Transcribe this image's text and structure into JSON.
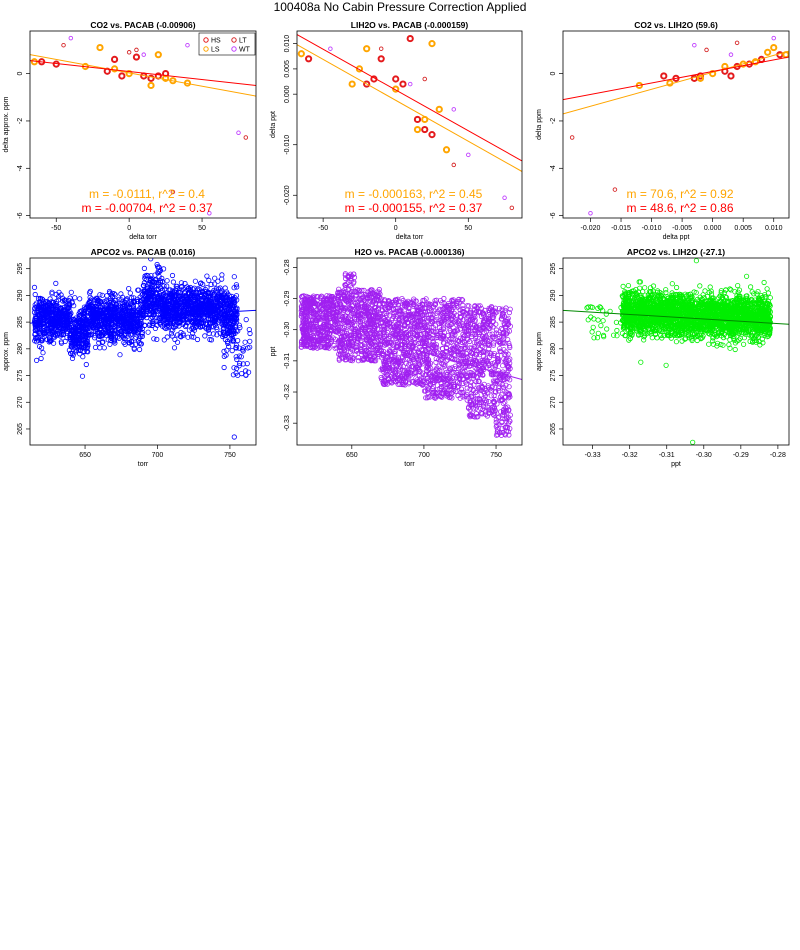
{
  "page": {
    "title": "100408a   No Cabin Pressure Correction Applied"
  },
  "colors": {
    "HS": "#e41a1c",
    "LS": "#ffa500",
    "LT": "#d62728",
    "WT": "#c040ff",
    "blue": "#0000ff",
    "purple": "#a020f0",
    "green": "#00ee00",
    "fit_red": "#ff0000",
    "fit_orange": "#ffa500"
  },
  "chart_data": [
    {
      "type": "scatter",
      "title": "CO2 vs. PACAB (-0.00906)",
      "xlabel": "delta torr",
      "ylabel": "delta approx. ppm",
      "xlim": [
        -68,
        87
      ],
      "ylim": [
        -6.1,
        1.8
      ],
      "xticks": [
        -50,
        0,
        50
      ],
      "yticks": [
        -6,
        -4,
        -2,
        0
      ],
      "legend": {
        "position": "top-right",
        "entries": [
          "HS",
          "LS",
          "LT",
          "WT"
        ]
      },
      "annotations": [
        {
          "text": "m = -0.0111, r^2 = 0.4",
          "color": "#ffa500"
        },
        {
          "text": "m = -0.00704, r^2 = 0.37",
          "color": "#ff0000"
        }
      ],
      "fits": [
        {
          "color": "#ffa500",
          "x": [
            -68,
            87
          ],
          "y": [
            0.8,
            -0.95
          ]
        },
        {
          "color": "#ff0000",
          "x": [
            -68,
            87
          ],
          "y": [
            0.55,
            -0.5
          ]
        }
      ],
      "series": [
        {
          "name": "HS",
          "color": "#e41a1c",
          "thick": true,
          "points": [
            [
              -60,
              0.5
            ],
            [
              -50,
              0.4
            ],
            [
              -15,
              0.1
            ],
            [
              -10,
              0.6
            ],
            [
              -5,
              -0.1
            ],
            [
              5,
              0.7
            ],
            [
              10,
              -0.1
            ],
            [
              15,
              -0.2
            ],
            [
              20,
              -0.1
            ],
            [
              25,
              0.0
            ]
          ]
        },
        {
          "name": "LS",
          "color": "#ffa500",
          "thick": true,
          "points": [
            [
              -65,
              0.5
            ],
            [
              -30,
              0.3
            ],
            [
              -20,
              1.1
            ],
            [
              -10,
              0.2
            ],
            [
              0,
              0.0
            ],
            [
              15,
              -0.5
            ],
            [
              20,
              0.8
            ],
            [
              25,
              -0.2
            ],
            [
              30,
              -0.3
            ],
            [
              40,
              -0.4
            ]
          ]
        },
        {
          "name": "LT",
          "color": "#d62728",
          "thick": false,
          "points": [
            [
              -45,
              1.2
            ],
            [
              0,
              0.9
            ],
            [
              5,
              1.0
            ],
            [
              30,
              -5.0
            ],
            [
              80,
              -2.7
            ]
          ]
        },
        {
          "name": "WT",
          "color": "#c040ff",
          "thick": false,
          "points": [
            [
              -40,
              1.5
            ],
            [
              10,
              0.8
            ],
            [
              40,
              1.2
            ],
            [
              55,
              -5.9
            ],
            [
              75,
              -2.5
            ]
          ]
        }
      ]
    },
    {
      "type": "scatter",
      "title": "LIH2O vs. PACAB (-0.000159)",
      "xlabel": "delta torr",
      "ylabel": "delta ppt",
      "xlim": [
        -68,
        87
      ],
      "ylim": [
        -0.0245,
        0.0125
      ],
      "xticks": [
        -50,
        0,
        50
      ],
      "yticks": [
        -0.02,
        -0.01,
        0.0,
        0.005,
        0.01
      ],
      "ytick_labels": [
        "-0.020",
        "-0.010",
        "0.000",
        "0.005",
        "0.010"
      ],
      "annotations": [
        {
          "text": "m = -0.000163, r^2 = 0.45",
          "color": "#ffa500"
        },
        {
          "text": "m = -0.000155, r^2 = 0.37",
          "color": "#ff0000"
        }
      ],
      "fits": [
        {
          "color": "#ffa500",
          "x": [
            -68,
            87
          ],
          "y": [
            0.0098,
            -0.0153
          ]
        },
        {
          "color": "#ff0000",
          "x": [
            -68,
            87
          ],
          "y": [
            0.0118,
            -0.0132
          ]
        }
      ],
      "series": [
        {
          "name": "HS",
          "color": "#e41a1c",
          "thick": true,
          "points": [
            [
              -60,
              0.007
            ],
            [
              -20,
              0.002
            ],
            [
              -10,
              0.007
            ],
            [
              0,
              0.003
            ],
            [
              10,
              0.011
            ],
            [
              15,
              -0.005
            ],
            [
              20,
              -0.007
            ],
            [
              25,
              -0.008
            ],
            [
              -15,
              0.003
            ],
            [
              5,
              0.002
            ]
          ]
        },
        {
          "name": "LS",
          "color": "#ffa500",
          "thick": true,
          "points": [
            [
              -65,
              0.008
            ],
            [
              -30,
              0.002
            ],
            [
              -25,
              0.005
            ],
            [
              -20,
              0.009
            ],
            [
              0,
              0.001
            ],
            [
              20,
              -0.005
            ],
            [
              25,
              0.01
            ],
            [
              30,
              -0.003
            ],
            [
              35,
              -0.011
            ],
            [
              15,
              -0.007
            ]
          ]
        },
        {
          "name": "LT",
          "color": "#d62728",
          "thick": false,
          "points": [
            [
              -10,
              0.009
            ],
            [
              20,
              0.003
            ],
            [
              40,
              -0.014
            ],
            [
              80,
              -0.0225
            ]
          ]
        },
        {
          "name": "WT",
          "color": "#c040ff",
          "thick": false,
          "points": [
            [
              -45,
              0.009
            ],
            [
              10,
              0.002
            ],
            [
              40,
              -0.003
            ],
            [
              50,
              -0.012
            ],
            [
              75,
              -0.0205
            ]
          ]
        }
      ]
    },
    {
      "type": "scatter",
      "title": "CO2 vs. LIH2O (59.6)",
      "xlabel": "delta ppt",
      "ylabel": "delta ppm",
      "xlim": [
        -0.0245,
        0.0125
      ],
      "ylim": [
        -6.1,
        1.8
      ],
      "xticks": [
        -0.02,
        -0.015,
        -0.01,
        -0.005,
        0.0,
        0.005,
        0.01
      ],
      "xtick_labels": [
        "-0.020",
        "-0.015",
        "-0.010",
        "-0.005",
        "0.000",
        "0.005",
        "0.010"
      ],
      "yticks": [
        -6,
        -4,
        -2,
        0
      ],
      "annotations": [
        {
          "text": "m = 70.6, r^2 = 0.92",
          "color": "#ffa500"
        },
        {
          "text": "m = 48.6, r^2 = 0.86",
          "color": "#ff0000"
        }
      ],
      "fits": [
        {
          "color": "#ffa500",
          "x": [
            -0.0245,
            0.0125
          ],
          "y": [
            -1.7,
            0.95
          ]
        },
        {
          "color": "#ff0000",
          "x": [
            -0.0245,
            0.0125
          ],
          "y": [
            -1.1,
            0.7
          ]
        }
      ],
      "series": [
        {
          "name": "HS",
          "color": "#e41a1c",
          "thick": true,
          "points": [
            [
              -0.008,
              -0.1
            ],
            [
              -0.006,
              -0.2
            ],
            [
              -0.002,
              -0.1
            ],
            [
              0.002,
              0.1
            ],
            [
              0.003,
              -0.1
            ],
            [
              0.006,
              0.4
            ],
            [
              0.008,
              0.6
            ],
            [
              0.011,
              0.8
            ],
            [
              -0.003,
              -0.2
            ],
            [
              0.004,
              0.3
            ]
          ]
        },
        {
          "name": "LS",
          "color": "#ffa500",
          "thick": true,
          "points": [
            [
              -0.012,
              -0.5
            ],
            [
              -0.007,
              -0.4
            ],
            [
              -0.002,
              -0.2
            ],
            [
              0.002,
              0.3
            ],
            [
              0.005,
              0.4
            ],
            [
              0.007,
              0.5
            ],
            [
              0.009,
              0.9
            ],
            [
              0.01,
              1.1
            ],
            [
              0.012,
              0.8
            ],
            [
              0.0,
              0.0
            ]
          ]
        },
        {
          "name": "LT",
          "color": "#d62728",
          "thick": false,
          "points": [
            [
              -0.023,
              -2.7
            ],
            [
              -0.016,
              -4.9
            ],
            [
              -0.001,
              1.0
            ],
            [
              0.004,
              1.3
            ]
          ]
        },
        {
          "name": "WT",
          "color": "#c040ff",
          "thick": false,
          "points": [
            [
              -0.02,
              -5.9
            ],
            [
              -0.003,
              1.2
            ],
            [
              0.003,
              0.8
            ],
            [
              0.01,
              1.5
            ]
          ]
        }
      ]
    },
    {
      "type": "scatter",
      "title": "APCO2 vs. PACAB (0.016)",
      "xlabel": "torr",
      "ylabel": "approx. ppm",
      "xlim": [
        612,
        768
      ],
      "ylim": [
        262,
        297
      ],
      "xticks": [
        650,
        700,
        750
      ],
      "yticks": [
        265,
        270,
        275,
        280,
        285,
        290,
        295
      ],
      "color": "#0000ff",
      "fit": {
        "color": "#0000ff",
        "x": [
          612,
          768
        ],
        "y": [
          284.8,
          287.2
        ]
      },
      "generator": "apco2_pacab"
    },
    {
      "type": "scatter",
      "title": "H2O vs. PACAB (-0.000136)",
      "xlabel": "torr",
      "ylabel": "ppt",
      "xlim": [
        612,
        768
      ],
      "ylim": [
        -0.337,
        -0.277
      ],
      "xticks": [
        650,
        700,
        750
      ],
      "yticks": [
        -0.33,
        -0.32,
        -0.31,
        -0.3,
        -0.29,
        -0.28
      ],
      "ytick_labels": [
        "-0.33",
        "-0.32",
        "-0.31",
        "-0.30",
        "-0.29",
        "-0.28"
      ],
      "color": "#a020f0",
      "fit": {
        "color": "#a020f0",
        "x": [
          690,
          768
        ],
        "y": [
          -0.306,
          -0.316
        ]
      },
      "generator": "h2o_pacab"
    },
    {
      "type": "scatter",
      "title": "APCO2 vs. LIH2O (-27.1)",
      "xlabel": "ppt",
      "ylabel": "approx. ppm",
      "xlim": [
        -0.338,
        -0.277
      ],
      "ylim": [
        262,
        297
      ],
      "xticks": [
        -0.33,
        -0.32,
        -0.31,
        -0.3,
        -0.29,
        -0.28
      ],
      "xtick_labels": [
        "-0.33",
        "-0.32",
        "-0.31",
        "-0.30",
        "-0.29",
        "-0.28"
      ],
      "yticks": [
        265,
        270,
        275,
        280,
        285,
        290,
        295
      ],
      "color": "#00ee00",
      "fit": {
        "color": "#008800",
        "x": [
          -0.338,
          -0.277
        ],
        "y": [
          287.2,
          284.6
        ]
      },
      "generator": "apco2_lih2o"
    }
  ]
}
